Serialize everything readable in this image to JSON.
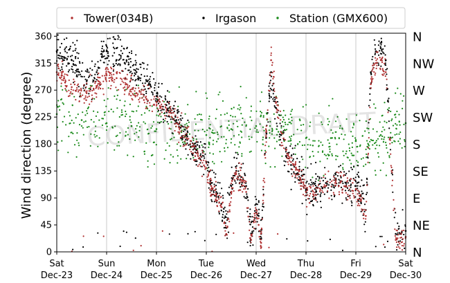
{
  "chart_data": {
    "type": "scatter",
    "title": "",
    "xlabel": "",
    "ylabel": "Wind direction (degree)",
    "ylim": [
      0,
      365
    ],
    "yticks": [
      0,
      45,
      90,
      135,
      180,
      225,
      270,
      315,
      360
    ],
    "xlim": [
      0,
      7
    ],
    "xticks": [
      {
        "day": 0,
        "weekday": "Sat",
        "date": "Dec-23"
      },
      {
        "day": 1,
        "weekday": "Sun",
        "date": "Dec-24"
      },
      {
        "day": 2,
        "weekday": "Mon",
        "date": "Dec-25"
      },
      {
        "day": 3,
        "weekday": "Tue",
        "date": "Dec-26"
      },
      {
        "day": 4,
        "weekday": "Wed",
        "date": "Dec-27"
      },
      {
        "day": 5,
        "weekday": "Thu",
        "date": "Dec-28"
      },
      {
        "day": 6,
        "weekday": "Fri",
        "date": "Dec-29"
      },
      {
        "day": 7,
        "weekday": "Sat",
        "date": "Dec-30"
      }
    ],
    "vertical_grid": true,
    "horizontal_grid": false,
    "compass_labels": [
      {
        "deg": 0,
        "label": "N"
      },
      {
        "deg": 45,
        "label": "NE"
      },
      {
        "deg": 90,
        "label": "E"
      },
      {
        "deg": 135,
        "label": "SE"
      },
      {
        "deg": 180,
        "label": "S"
      },
      {
        "deg": 225,
        "label": "SW"
      },
      {
        "deg": 270,
        "label": "W"
      },
      {
        "deg": 315,
        "label": "NW"
      },
      {
        "deg": 360,
        "label": "N"
      }
    ],
    "legend_position": "top",
    "series": [
      {
        "name": "Tower(034B)",
        "color": "#b03030",
        "x": [
          0.0,
          0.15,
          0.3,
          0.45,
          0.6,
          0.8,
          1.0,
          1.2,
          1.4,
          1.6,
          1.8,
          2.0,
          2.2,
          2.4,
          2.6,
          2.8,
          3.0,
          3.1,
          3.2,
          3.3,
          3.4,
          3.5,
          3.6,
          3.7,
          3.8,
          3.9,
          4.0,
          4.05,
          4.1,
          4.2,
          4.3,
          4.4,
          4.5,
          4.6,
          4.7,
          4.8,
          4.9,
          5.0,
          5.2,
          5.4,
          5.6,
          5.8,
          6.0,
          6.1,
          6.2,
          6.3,
          6.4,
          6.5,
          6.6,
          6.8,
          7.0
        ],
        "y": [
          300,
          290,
          275,
          270,
          265,
          275,
          295,
          290,
          280,
          265,
          255,
          250,
          235,
          215,
          190,
          165,
          140,
          110,
          95,
          75,
          30,
          100,
          130,
          120,
          100,
          20,
          70,
          45,
          15,
          200,
          320,
          250,
          200,
          170,
          150,
          140,
          120,
          100,
          95,
          110,
          115,
          110,
          105,
          85,
          60,
          280,
          315,
          320,
          300,
          20,
          25
        ],
        "sample_spread": 10
      },
      {
        "name": "Irgason",
        "color": "#000000",
        "x": [
          0.0,
          0.15,
          0.3,
          0.45,
          0.6,
          0.8,
          1.0,
          1.2,
          1.4,
          1.6,
          1.8,
          2.0,
          2.2,
          2.4,
          2.6,
          2.8,
          3.0,
          3.1,
          3.2,
          3.3,
          3.4,
          3.5,
          3.6,
          3.7,
          3.8,
          3.9,
          4.0,
          4.05,
          4.1,
          4.2,
          4.3,
          4.4,
          4.5,
          4.6,
          4.7,
          4.8,
          4.9,
          5.0,
          5.2,
          5.4,
          5.6,
          5.8,
          6.0,
          6.1,
          6.2,
          6.3,
          6.4,
          6.5,
          6.6,
          6.8,
          7.0
        ],
        "y": [
          335,
          325,
          320,
          300,
          285,
          300,
          335,
          340,
          320,
          300,
          285,
          260,
          245,
          220,
          195,
          170,
          150,
          115,
          100,
          80,
          40,
          110,
          135,
          125,
          110,
          30,
          80,
          60,
          30,
          190,
          300,
          240,
          195,
          160,
          145,
          130,
          115,
          105,
          100,
          115,
          120,
          115,
          110,
          95,
          70,
          300,
          335,
          340,
          320,
          30,
          35
        ],
        "sample_spread": 16
      },
      {
        "name": "Station (GMX600)",
        "color": "#1a8a1a",
        "x": [
          0.0,
          0.5,
          1.0,
          1.5,
          2.0,
          2.5,
          3.0,
          3.5,
          4.0,
          4.5,
          5.0,
          5.5,
          6.0,
          6.5,
          7.0
        ],
        "y": [
          230,
          220,
          215,
          210,
          205,
          200,
          195,
          205,
          210,
          200,
          190,
          190,
          185,
          195,
          215
        ],
        "sample_spread": 28
      }
    ],
    "watermark": "CONFIDENTIAL DRAFT"
  }
}
